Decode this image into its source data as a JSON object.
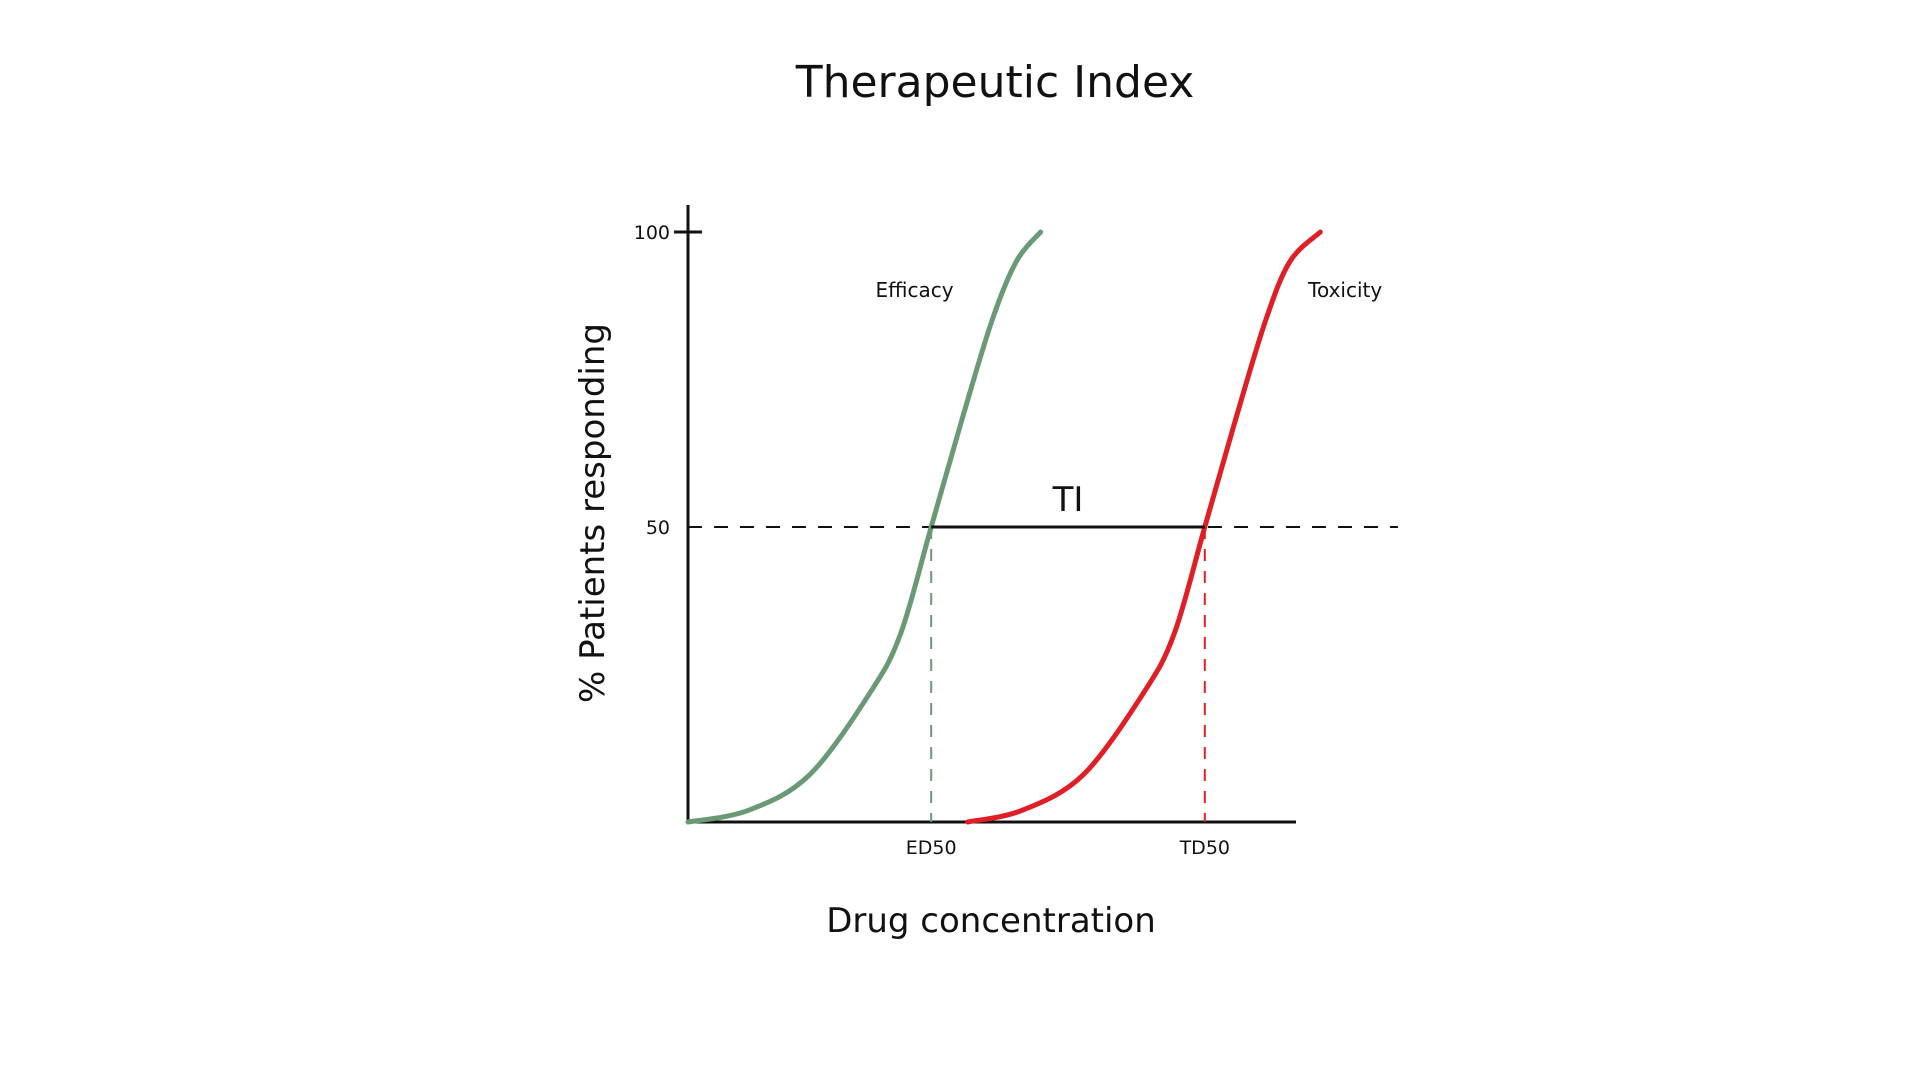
{
  "chart_data": {
    "type": "line",
    "title": "Therapeutic Index",
    "xlabel": "Drug concentration",
    "ylabel": "% Patients responding",
    "xlim": [
      0,
      100
    ],
    "ylim": [
      0,
      100
    ],
    "y_ticks": [
      {
        "value": 100,
        "label": "100"
      },
      {
        "value": 50,
        "label": "50"
      }
    ],
    "x_ticks": [
      {
        "value": 40,
        "label": "ED50",
        "color": "#6a9a75"
      },
      {
        "value": 85,
        "label": "TD50",
        "color": "#e01e25"
      }
    ],
    "series": [
      {
        "name": "Efficacy",
        "color": "#6a9a75",
        "x": [
          0,
          10,
          20,
          30,
          35,
          40,
          45,
          50,
          54,
          58
        ],
        "y": [
          0,
          2,
          8,
          22,
          32,
          50,
          68,
          85,
          95,
          100
        ]
      },
      {
        "name": "Toxicity",
        "color": "#e01e25",
        "x": [
          46,
          55,
          65,
          75,
          80,
          85,
          90,
          95,
          99,
          104
        ],
        "y": [
          0,
          2,
          8,
          22,
          32,
          50,
          68,
          85,
          95,
          100
        ]
      }
    ],
    "reference_line": {
      "y": 50,
      "style": "dashed",
      "color": "#111111"
    },
    "annotation": {
      "label": "TI",
      "from_x": 40,
      "to_x": 85,
      "y": 50
    },
    "grid": false,
    "legend": "none"
  }
}
